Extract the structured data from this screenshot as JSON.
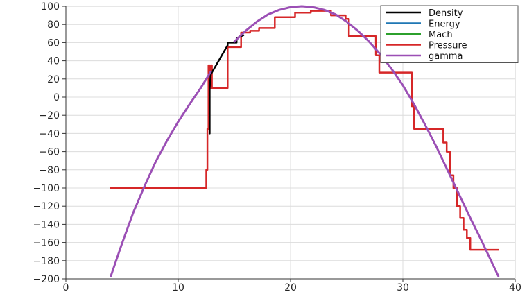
{
  "chart_data": {
    "type": "line",
    "title": "",
    "xlabel": "",
    "ylabel": "",
    "xlim": [
      0,
      40
    ],
    "ylim": [
      -200,
      100
    ],
    "x_ticks": [
      "0",
      "10",
      "20",
      "30",
      "40"
    ],
    "y_ticks": [
      "100",
      "80",
      "60",
      "40",
      "20",
      "0",
      "−20",
      "−40",
      "−60",
      "−80",
      "−100",
      "−120",
      "−140",
      "−160",
      "−180",
      "−200"
    ],
    "grid": true,
    "legend_position": "top-right",
    "series": [
      {
        "name": "Density",
        "color": "#000000",
        "x": [
          12.8,
          12.8,
          12.9,
          14.4,
          14.4,
          15.2,
          15.2,
          15.8
        ],
        "y": [
          -40,
          10,
          25,
          57,
          60,
          60,
          65,
          68
        ]
      },
      {
        "name": "Energy",
        "color": "#1f77b4",
        "x": [],
        "y": []
      },
      {
        "name": "Mach",
        "color": "#2ca02c",
        "x": [],
        "y": []
      },
      {
        "name": "Pressure",
        "color": "#d62728",
        "x": [
          4,
          12.5,
          12.5,
          12.6,
          12.6,
          12.7,
          12.7,
          12.8,
          12.8,
          12.9,
          12.9,
          13.0,
          13.0,
          14.4,
          14.4,
          15.6,
          15.6,
          16.4,
          16.4,
          17.2,
          17.2,
          18.6,
          18.6,
          20.4,
          20.4,
          21.8,
          21.8,
          23.6,
          23.6,
          24.9,
          24.9,
          25.2,
          25.2,
          27.6,
          27.6,
          27.9,
          27.9,
          28.2,
          28.2,
          30.8,
          30.8,
          31.0,
          31.0,
          31.3,
          31.3,
          33.6,
          33.6,
          33.9,
          33.9,
          34.2,
          34.2,
          34.5,
          34.5,
          34.8,
          34.8,
          35.1,
          35.1,
          35.4,
          35.4,
          35.7,
          35.7,
          36.0,
          36.0,
          38.5
        ],
        "y": [
          -100,
          -100,
          -80,
          -80,
          -35,
          -35,
          35,
          35,
          10,
          10,
          35,
          35,
          10,
          10,
          55,
          55,
          71,
          71,
          73,
          73,
          76,
          76,
          88,
          88,
          93,
          93,
          95,
          95,
          90,
          90,
          86,
          86,
          67,
          67,
          46,
          46,
          27,
          27,
          27,
          27,
          -10,
          -10,
          -35,
          -35,
          -35,
          -35,
          -50,
          -50,
          -60,
          -60,
          -86,
          -86,
          -100,
          -100,
          -120,
          -120,
          -133,
          -133,
          -146,
          -146,
          -155,
          -155,
          -168,
          -168
        ]
      },
      {
        "name": "gamma",
        "color": "#9b4fb5",
        "x": [
          4,
          5,
          6,
          7,
          8,
          9,
          10,
          11,
          12,
          12.9
        ],
        "y": [
          -197,
          -161,
          -127,
          -98,
          -71,
          -48,
          -27,
          -8,
          10,
          28
        ],
        "x2": [
          15,
          16,
          17,
          18,
          19,
          20,
          21,
          22,
          23,
          24,
          25,
          26,
          27,
          28,
          29,
          30,
          31,
          32,
          33,
          34,
          35,
          36,
          37,
          38.5
        ],
        "y2": [
          61,
          73,
          83,
          91,
          96,
          99,
          100,
          99,
          96,
          91,
          83,
          73,
          61,
          47,
          31,
          13,
          -8,
          -31,
          -55,
          -81,
          -107,
          -133,
          -158,
          -197
        ]
      }
    ]
  }
}
